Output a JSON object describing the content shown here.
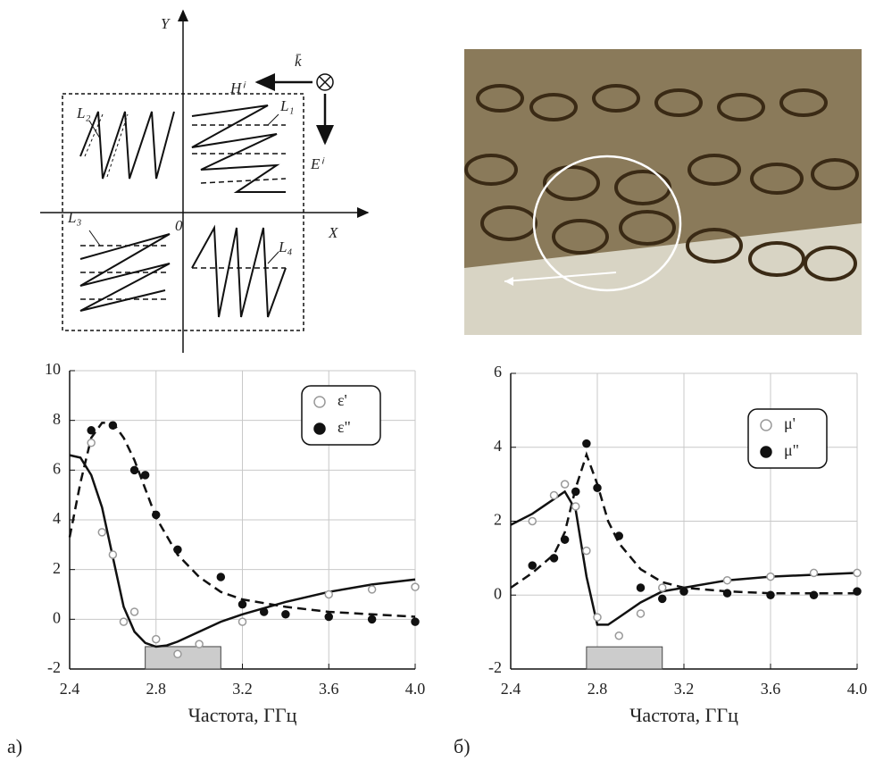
{
  "diagram": {
    "labels": {
      "y_axis": "Y",
      "x_axis": "X",
      "origin": "0",
      "h_field": "Hⁱ",
      "k_vector": "k̄",
      "e_field": "Eⁱ",
      "l1": "L₁",
      "l2": "L₂",
      "l3": "L₃",
      "l4": "L₄"
    }
  },
  "chart_data": [
    {
      "type": "scatter",
      "panel_label": "а)",
      "xlabel": "Частота, ГГц",
      "xlim": [
        2.4,
        4.0
      ],
      "ylim": [
        -2,
        10
      ],
      "xticks": [
        2.4,
        2.8,
        3.2,
        3.6,
        {
          "value": 4,
          "label": "4.0"
        }
      ],
      "yticks": [
        -2,
        0,
        2,
        4,
        6,
        8,
        10
      ],
      "grid": true,
      "legend": "top-right",
      "highlight": {
        "x": [
          2.75,
          3.1
        ],
        "y": [
          -2,
          -1.1
        ],
        "color": "#cccccc"
      },
      "series": [
        {
          "name": "ε'",
          "marker": "open",
          "color": "#999999",
          "x": [
            2.5,
            2.55,
            2.6,
            2.65,
            2.7,
            2.8,
            2.9,
            3.0,
            3.2,
            3.6,
            3.8,
            4.0
          ],
          "values": [
            7.1,
            3.5,
            2.6,
            -0.1,
            0.3,
            -0.8,
            -1.4,
            -1.0,
            -0.1,
            1.0,
            1.2,
            1.3
          ],
          "fit": {
            "dash": false,
            "color": "#111111",
            "x": [
              2.4,
              2.45,
              2.5,
              2.55,
              2.6,
              2.65,
              2.7,
              2.75,
              2.8,
              2.85,
              2.9,
              3.0,
              3.1,
              3.2,
              3.4,
              3.6,
              3.8,
              4.0
            ],
            "values": [
              6.6,
              6.5,
              5.8,
              4.5,
              2.5,
              0.5,
              -0.5,
              -0.95,
              -1.1,
              -1.05,
              -0.9,
              -0.5,
              -0.1,
              0.2,
              0.7,
              1.1,
              1.4,
              1.6
            ]
          }
        },
        {
          "name": "ε\"",
          "marker": "filled",
          "color": "#111111",
          "x": [
            2.5,
            2.6,
            2.7,
            2.75,
            2.8,
            2.9,
            3.1,
            3.2,
            3.3,
            3.4,
            3.6,
            3.8,
            4.0
          ],
          "values": [
            7.6,
            7.8,
            6.0,
            5.8,
            4.2,
            2.8,
            1.7,
            0.6,
            0.3,
            0.2,
            0.1,
            0.0,
            -0.1
          ],
          "fit": {
            "dash": true,
            "color": "#111111",
            "x": [
              2.4,
              2.45,
              2.5,
              2.55,
              2.6,
              2.65,
              2.7,
              2.8,
              2.9,
              3.0,
              3.1,
              3.2,
              3.4,
              3.6,
              3.8,
              4.0
            ],
            "values": [
              3.3,
              5.5,
              7.3,
              7.9,
              7.9,
              7.3,
              6.4,
              4.1,
              2.6,
              1.7,
              1.1,
              0.8,
              0.5,
              0.3,
              0.2,
              0.1
            ]
          }
        }
      ]
    },
    {
      "type": "scatter",
      "panel_label": "б)",
      "xlabel": "Частота, ГГц",
      "xlim": [
        2.4,
        4.0
      ],
      "ylim": [
        -2,
        6
      ],
      "xticks": [
        2.4,
        2.8,
        3.2,
        3.6,
        {
          "value": 4,
          "label": "4.0"
        }
      ],
      "yticks": [
        -2,
        0,
        2,
        4,
        6
      ],
      "grid": true,
      "legend": "top-right",
      "highlight": {
        "x": [
          2.75,
          3.1
        ],
        "y": [
          -2,
          -1.4
        ],
        "color": "#cccccc"
      },
      "series": [
        {
          "name": "μ'",
          "marker": "open",
          "color": "#999999",
          "x": [
            2.5,
            2.6,
            2.65,
            2.7,
            2.75,
            2.8,
            2.9,
            3.0,
            3.1,
            3.2,
            3.4,
            3.6,
            3.8,
            4.0
          ],
          "values": [
            2.0,
            2.7,
            3.0,
            2.4,
            1.2,
            -0.6,
            -1.1,
            -0.5,
            0.2,
            0.1,
            0.4,
            0.5,
            0.6,
            0.6
          ],
          "fit": {
            "dash": false,
            "color": "#111111",
            "x": [
              2.4,
              2.5,
              2.6,
              2.65,
              2.7,
              2.75,
              2.8,
              2.85,
              2.9,
              3.0,
              3.1,
              3.2,
              3.4,
              3.6,
              3.8,
              4.0
            ],
            "values": [
              1.9,
              2.2,
              2.6,
              2.8,
              2.3,
              0.5,
              -0.8,
              -0.8,
              -0.6,
              -0.2,
              0.1,
              0.2,
              0.4,
              0.5,
              0.55,
              0.6
            ]
          }
        },
        {
          "name": "μ\"",
          "marker": "filled",
          "color": "#111111",
          "x": [
            2.5,
            2.6,
            2.65,
            2.7,
            2.75,
            2.8,
            2.9,
            3.0,
            3.1,
            3.2,
            3.4,
            3.6,
            3.8,
            4.0
          ],
          "values": [
            0.8,
            1.0,
            1.5,
            2.8,
            4.1,
            2.9,
            1.6,
            0.2,
            -0.1,
            0.1,
            0.05,
            0.0,
            0.0,
            0.1
          ],
          "fit": {
            "dash": true,
            "color": "#111111",
            "x": [
              2.4,
              2.5,
              2.6,
              2.65,
              2.7,
              2.75,
              2.8,
              2.85,
              2.9,
              3.0,
              3.1,
              3.2,
              3.4,
              3.6,
              3.8,
              4.0
            ],
            "values": [
              0.2,
              0.6,
              1.1,
              1.7,
              2.9,
              3.8,
              3.0,
              2.0,
              1.4,
              0.7,
              0.35,
              0.2,
              0.1,
              0.05,
              0.05,
              0.05
            ]
          }
        }
      ]
    }
  ]
}
